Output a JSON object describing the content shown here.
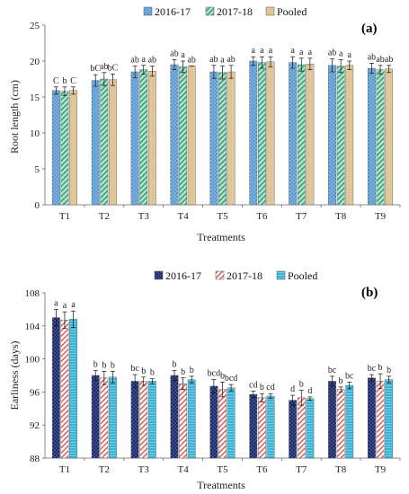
{
  "chart_data": [
    {
      "type": "bar",
      "panel_label": "(a)",
      "xlabel": "Treatments",
      "ylabel": "Root length (cm)",
      "ylim": [
        0,
        25
      ],
      "yticks": [
        0,
        5,
        10,
        15,
        20,
        25
      ],
      "grid": false,
      "legend_position": "top",
      "categories": [
        "T1",
        "T2",
        "T3",
        "T4",
        "T5",
        "T6",
        "T7",
        "T8",
        "T9"
      ],
      "series": [
        {
          "name": "2016-17",
          "color": "#5b9bd5",
          "values": [
            15.9,
            17.3,
            18.5,
            19.5,
            18.5,
            20.0,
            19.8,
            19.4,
            19.0
          ],
          "errors": [
            0.5,
            0.8,
            0.8,
            0.7,
            0.9,
            0.6,
            0.8,
            0.9,
            0.7
          ],
          "labels": [
            "C",
            "bC",
            "ab",
            "ab",
            "ab",
            "a",
            "a",
            "ab",
            "ab"
          ]
        },
        {
          "name": "2017-18",
          "color": "#4ab08a",
          "values": [
            15.8,
            17.5,
            18.8,
            19.2,
            18.4,
            19.8,
            19.5,
            19.3,
            18.8
          ],
          "errors": [
            0.6,
            0.9,
            0.6,
            0.8,
            0.9,
            0.8,
            0.9,
            0.9,
            0.6
          ],
          "labels": [
            "b",
            "ab",
            "a",
            "a",
            "a",
            "a",
            "a",
            "a",
            "ab"
          ]
        },
        {
          "name": "Pooled",
          "color": "#e2c79a",
          "values": [
            15.9,
            17.4,
            18.6,
            19.3,
            18.5,
            19.9,
            19.6,
            19.4,
            18.9
          ],
          "errors": [
            0.5,
            0.8,
            0.7,
            0.0,
            0.9,
            0.7,
            0.8,
            0.6,
            0.5
          ],
          "labels": [
            "C",
            "bC",
            "ab",
            "ab",
            "ab",
            "a",
            "a",
            "a",
            "ab"
          ]
        }
      ]
    },
    {
      "type": "bar",
      "panel_label": "(b)",
      "xlabel": "Treatments",
      "ylabel": "Earliness (days)",
      "ylim": [
        88,
        108
      ],
      "yticks": [
        88,
        92,
        96,
        100,
        104,
        108
      ],
      "grid": false,
      "legend_position": "top",
      "categories": [
        "T1",
        "T2",
        "T3",
        "T4",
        "T5",
        "T6",
        "T7",
        "T8",
        "T9"
      ],
      "series": [
        {
          "name": "2016-17",
          "color": "#1c2a6b",
          "values": [
            105.0,
            98.0,
            97.3,
            98.0,
            96.7,
            95.7,
            95.0,
            97.3,
            97.7
          ],
          "errors": [
            1.0,
            0.6,
            0.8,
            0.6,
            0.8,
            0.4,
            0.6,
            0.6,
            0.4
          ],
          "labels": [
            "a",
            "b",
            "bc",
            "b",
            "bcd",
            "cd",
            "d",
            "bc",
            "bc"
          ]
        },
        {
          "name": "2017-18",
          "color": "#e8736c",
          "values": [
            104.7,
            97.7,
            97.3,
            97.0,
            96.3,
            95.3,
            95.3,
            96.3,
            97.3
          ],
          "errors": [
            1.0,
            0.8,
            0.5,
            0.7,
            0.9,
            0.5,
            0.9,
            0.3,
            0.9
          ],
          "labels": [
            "a",
            "b",
            "b",
            "b",
            "b",
            "b",
            "b",
            "b",
            "b"
          ]
        },
        {
          "name": "Pooled",
          "color": "#37b4d8",
          "values": [
            104.8,
            97.8,
            97.3,
            97.5,
            96.5,
            95.5,
            95.2,
            96.8,
            97.5
          ],
          "errors": [
            1.0,
            0.7,
            0.3,
            0.4,
            0.4,
            0.3,
            0.2,
            0.4,
            0.4
          ],
          "labels": [
            "a",
            "b",
            "b",
            "b",
            "bcd",
            "cd",
            "d",
            "bc",
            "b"
          ]
        }
      ]
    }
  ]
}
